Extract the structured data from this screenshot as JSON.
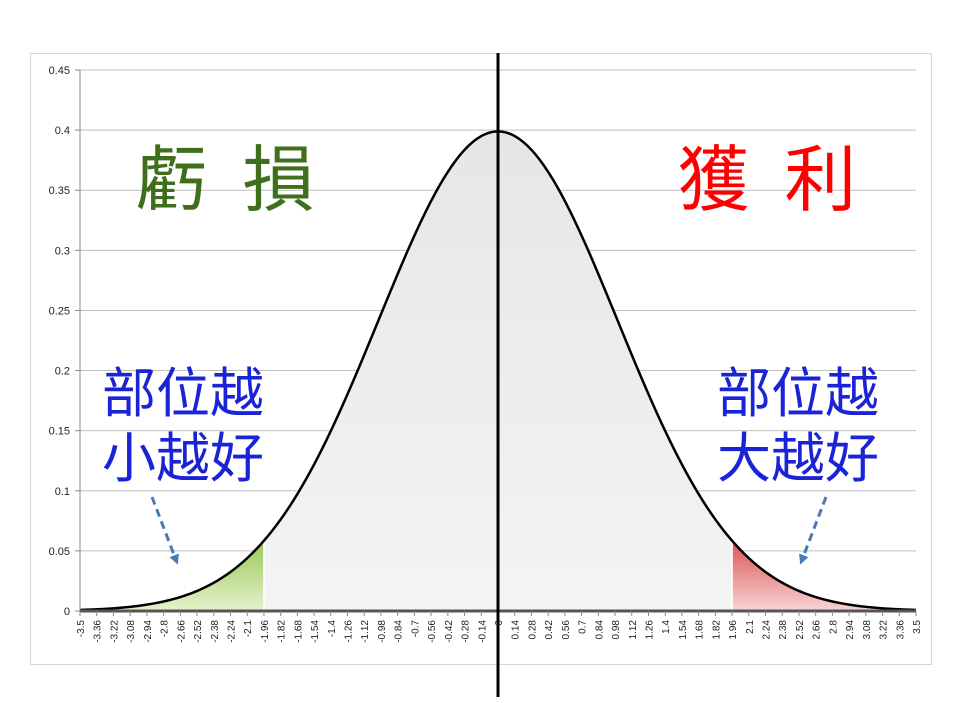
{
  "chart_data": {
    "type": "area",
    "distribution": "standard-normal",
    "xlim": [
      -3.5,
      3.5
    ],
    "ylim": [
      0,
      0.45
    ],
    "yticks": [
      0,
      0.05,
      0.1,
      0.15,
      0.2,
      0.25,
      0.3,
      0.35,
      0.4,
      0.45
    ],
    "ytick_labels": [
      "0",
      "0.05",
      "0.1",
      "0.15",
      "0.2",
      "0.25",
      "0.3",
      "0.35",
      "0.4",
      "0.45"
    ],
    "xtick_labels": [
      "-3.5",
      "-3.36",
      "-3.22",
      "-3.08",
      "-2.94",
      "-2.8",
      "-2.66",
      "-2.52",
      "-2.38",
      "-2.24",
      "-2.1",
      "-1.96",
      "-1.82",
      "-1.68",
      "-1.54",
      "-1.4",
      "-1.26",
      "-1.12",
      "-0.98",
      "-0.84",
      "-0.7",
      "-0.56",
      "-0.42",
      "-0.28",
      "-0.14",
      "0",
      "0.14",
      "0.28",
      "0.42",
      "0.56",
      "0.7",
      "0.84",
      "0.98",
      "1.12",
      "1.26",
      "1.4",
      "1.54",
      "1.68",
      "1.82",
      "1.96",
      "2.1",
      "2.24",
      "2.38",
      "2.52",
      "2.66",
      "2.8",
      "2.94",
      "3.08",
      "3.22",
      "3.36",
      "3.5"
    ],
    "grid": true,
    "vertical_line_x": 0,
    "left_tail_x": -1.96,
    "right_tail_x": 1.96,
    "peak": 0.3989,
    "colors": {
      "curve": "#000000",
      "body_fill": "#ececec",
      "left_tail": "#a9cf68",
      "right_tail": "#e06060",
      "grid": "#bfbfbf",
      "loss_text": "#3f6f1a",
      "profit_text": "#ff0000",
      "note_text": "#1a24d6",
      "arrow": "#4a7ab5"
    }
  },
  "annotations": {
    "loss_label": "虧 損",
    "profit_label": "獲 利",
    "left_note_line1": "部位越",
    "left_note_line2": "小越好",
    "right_note_line1": "部位越",
    "right_note_line2": "大越好"
  }
}
